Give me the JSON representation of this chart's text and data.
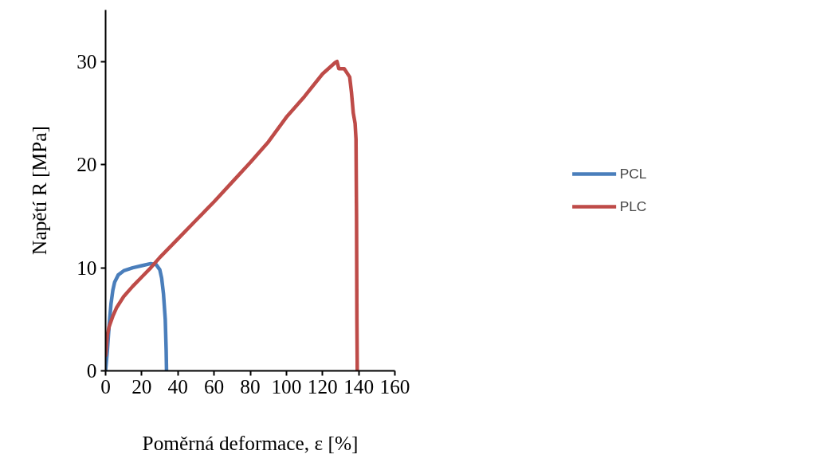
{
  "chart_data": {
    "type": "line",
    "xlabel": "Poměrná deformace, ε [%]",
    "ylabel": "Napětí R [MPa]",
    "xlim": [
      0,
      160
    ],
    "xticks": [
      0,
      20,
      40,
      60,
      80,
      100,
      120,
      140,
      160
    ],
    "ylim": [
      0,
      35
    ],
    "yticks": [
      0,
      10,
      20,
      30
    ],
    "grid": false,
    "legend": "right",
    "marker": "none",
    "line_style": "solid",
    "series": [
      {
        "name": "PCL",
        "color": "#4a7ebb",
        "x": [
          0,
          1,
          2,
          3,
          4,
          5,
          7,
          10,
          15,
          20,
          25,
          28,
          30,
          31,
          32,
          33,
          33.5,
          33.7
        ],
        "values": [
          0,
          2,
          4.5,
          6.5,
          7.8,
          8.6,
          9.3,
          9.7,
          10.0,
          10.2,
          10.4,
          10.3,
          9.8,
          9.0,
          7.5,
          5.0,
          2,
          0
        ]
      },
      {
        "name": "PLC",
        "color": "#be4b48",
        "x": [
          0,
          1,
          2,
          4,
          6,
          10,
          15,
          20,
          25,
          30,
          40,
          50,
          60,
          70,
          80,
          90,
          100,
          110,
          120,
          127,
          128,
          129,
          132,
          135,
          136,
          137,
          138,
          138.5,
          138.8,
          139,
          139.2
        ],
        "values": [
          1.5,
          3.5,
          4.3,
          5.3,
          6.1,
          7.2,
          8.2,
          9.1,
          10.0,
          11.0,
          12.8,
          14.6,
          16.4,
          18.3,
          20.2,
          22.2,
          24.6,
          26.6,
          28.8,
          29.9,
          30.0,
          29.3,
          29.3,
          28.5,
          27,
          25,
          24,
          22.5,
          15,
          5,
          0
        ]
      }
    ]
  }
}
